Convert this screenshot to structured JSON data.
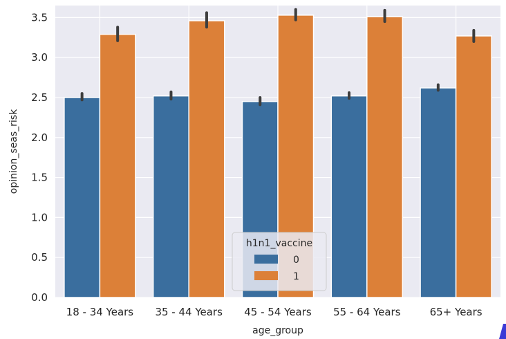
{
  "chart_data": {
    "type": "bar",
    "categories": [
      "18 - 34 Years",
      "35 - 44 Years",
      "45 - 54 Years",
      "55 - 64 Years",
      "65+ Years"
    ],
    "series": [
      {
        "name": "0",
        "values": [
          2.5,
          2.52,
          2.45,
          2.52,
          2.62
        ],
        "ci_low": [
          2.47,
          2.48,
          2.41,
          2.49,
          2.59
        ],
        "ci_high": [
          2.55,
          2.57,
          2.5,
          2.56,
          2.66
        ],
        "color": "#3a6e9e"
      },
      {
        "name": "1",
        "values": [
          3.29,
          3.46,
          3.53,
          3.51,
          3.27
        ],
        "ci_low": [
          3.21,
          3.38,
          3.47,
          3.45,
          3.2
        ],
        "ci_high": [
          3.38,
          3.56,
          3.6,
          3.59,
          3.34
        ],
        "color": "#dc8038"
      }
    ],
    "xlabel": "age_group",
    "ylabel": "opinion_seas_risk",
    "ylim": [
      0,
      3.65
    ],
    "yticks": [
      "0.0",
      "0.5",
      "1.0",
      "1.5",
      "2.0",
      "2.5",
      "3.0",
      "3.5"
    ],
    "grid": true,
    "legend": {
      "title": "h1n1_vaccine",
      "placement": "lower-center"
    },
    "colors": {
      "background": "#eaeaf2",
      "grid": "#ffffff",
      "errorbar": "#3d3d3d"
    }
  }
}
